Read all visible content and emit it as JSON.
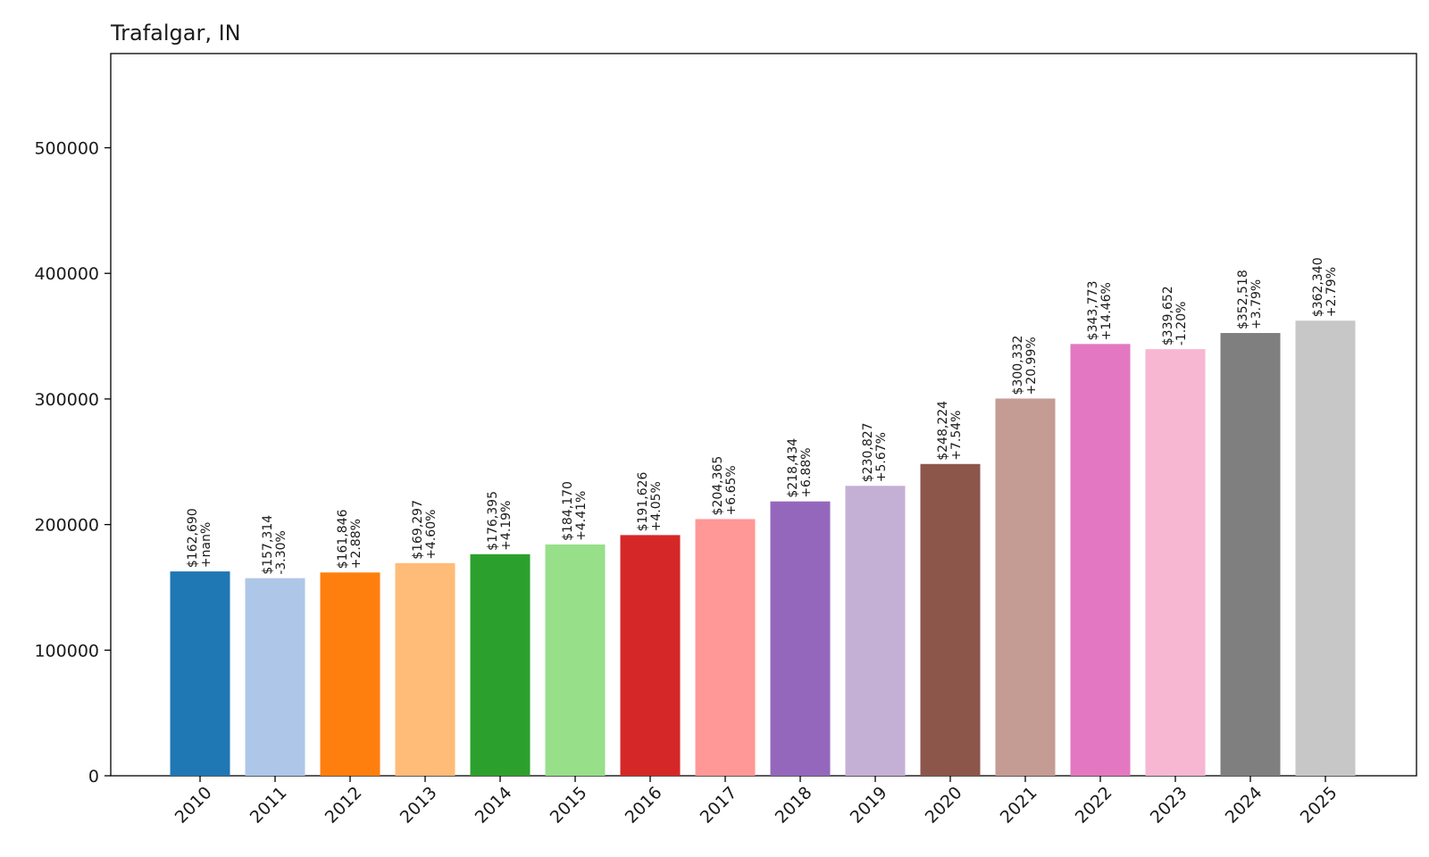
{
  "chart_data": {
    "type": "bar",
    "title": "Trafalgar, IN",
    "xlabel": "",
    "ylabel": "",
    "ylim": [
      0,
      575000
    ],
    "yticks": [
      0,
      100000,
      200000,
      300000,
      400000,
      500000
    ],
    "ytick_labels": [
      "0",
      "100000",
      "200000",
      "300000",
      "400000",
      "500000"
    ],
    "grid": false,
    "categories": [
      "2010",
      "2011",
      "2012",
      "2013",
      "2014",
      "2015",
      "2016",
      "2017",
      "2018",
      "2019",
      "2020",
      "2021",
      "2022",
      "2023",
      "2024",
      "2025"
    ],
    "values": [
      162690,
      157314,
      161846,
      169297,
      176395,
      184170,
      191626,
      204365,
      218434,
      230827,
      248224,
      300332,
      343773,
      339652,
      352518,
      362340
    ],
    "value_labels": [
      "$162,690",
      "$157,314",
      "$161,846",
      "$169,297",
      "$176,395",
      "$184,170",
      "$191,626",
      "$204,365",
      "$218,434",
      "$230,827",
      "$248,224",
      "$300,332",
      "$343,773",
      "$339,652",
      "$352,518",
      "$362,340"
    ],
    "change_labels": [
      "+nan%",
      "-3.30%",
      "+2.88%",
      "+4.60%",
      "+4.19%",
      "+4.41%",
      "+4.05%",
      "+6.65%",
      "+6.88%",
      "+5.67%",
      "+7.54%",
      "+20.99%",
      "+14.46%",
      "-1.20%",
      "+3.79%",
      "+2.79%"
    ],
    "colors": [
      "#1f77b4",
      "#aec7e8",
      "#ff7f0e",
      "#ffbb78",
      "#2ca02c",
      "#98df8a",
      "#d62728",
      "#ff9896",
      "#9467bd",
      "#c5b0d5",
      "#8c564b",
      "#c49c94",
      "#e377c2",
      "#f7b6d2",
      "#7f7f7f",
      "#c7c7c7"
    ]
  }
}
